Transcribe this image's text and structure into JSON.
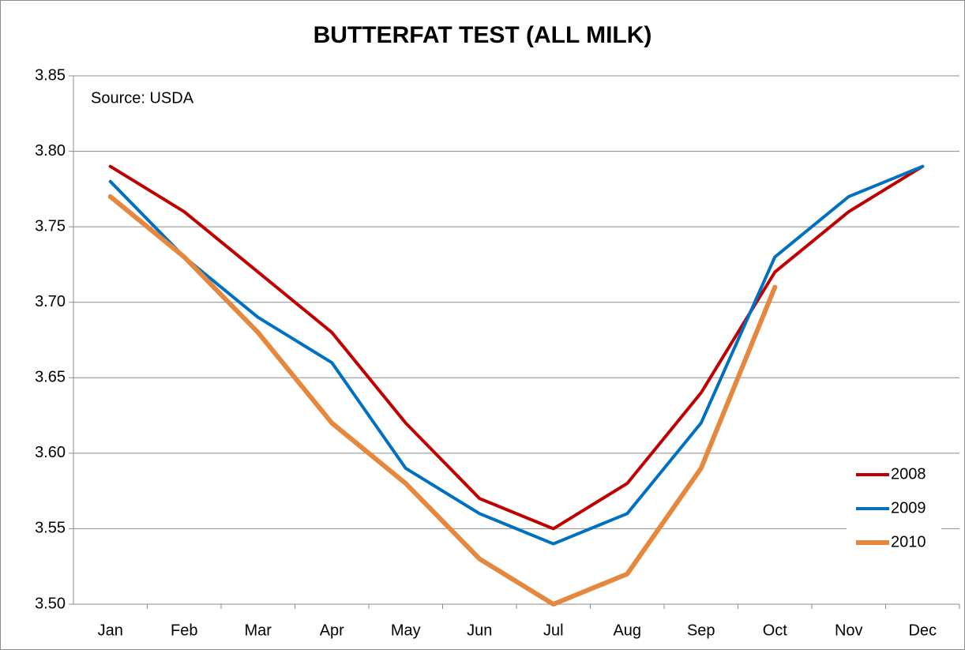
{
  "chart_data": {
    "type": "line",
    "title": "BUTTERFAT TEST (ALL MILK)",
    "annotation": "Source: USDA",
    "categories": [
      "Jan",
      "Feb",
      "Mar",
      "Apr",
      "May",
      "Jun",
      "Jul",
      "Aug",
      "Sep",
      "Oct",
      "Nov",
      "Dec"
    ],
    "series": [
      {
        "name": "2008",
        "color": "#c00000",
        "values": [
          3.79,
          3.76,
          3.72,
          3.68,
          3.62,
          3.57,
          3.55,
          3.58,
          3.64,
          3.72,
          3.76,
          3.79
        ]
      },
      {
        "name": "2009",
        "color": "#0070c0",
        "values": [
          3.78,
          3.73,
          3.69,
          3.66,
          3.59,
          3.56,
          3.54,
          3.56,
          3.62,
          3.73,
          3.77,
          3.79
        ]
      },
      {
        "name": "2010",
        "color": "#e5883e",
        "values": [
          3.77,
          3.73,
          3.68,
          3.62,
          3.58,
          3.53,
          3.5,
          3.52,
          3.59,
          3.71,
          null,
          null
        ]
      }
    ],
    "ylim": [
      3.5,
      3.85
    ],
    "yticks": [
      {
        "value": 3.5,
        "label": "3.50"
      },
      3.55,
      {
        "value": 3.6,
        "label": "3.60"
      },
      3.65,
      {
        "value": 3.7,
        "label": "3.70"
      },
      3.75,
      {
        "value": 3.8,
        "label": "3.80"
      },
      3.85
    ],
    "grid": true,
    "legend": "lower right"
  }
}
